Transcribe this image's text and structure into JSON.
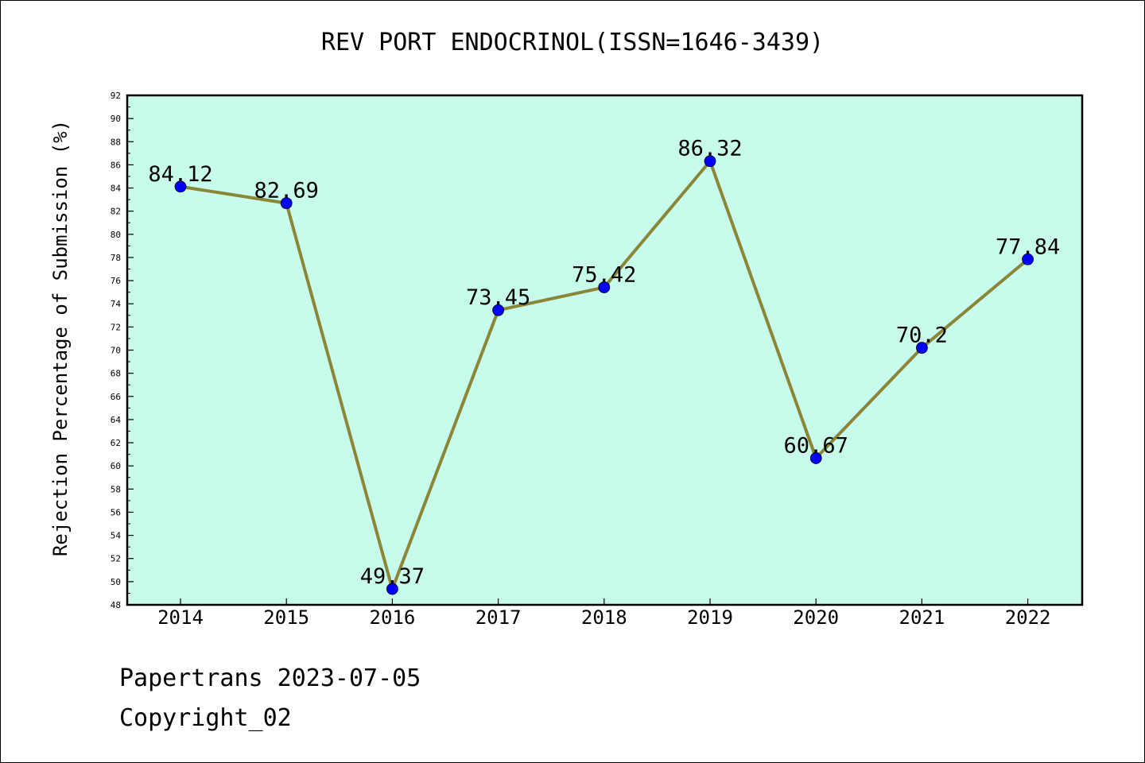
{
  "chart_data": {
    "type": "line",
    "title": "REV PORT ENDOCRINOL(ISSN=1646-3439)",
    "xlabel": "",
    "ylabel": "Rejection Percentage of Submission (%)",
    "categories": [
      "2014",
      "2015",
      "2016",
      "2017",
      "2018",
      "2019",
      "2020",
      "2021",
      "2022"
    ],
    "series": [
      {
        "values": [
          84.12,
          82.69,
          49.37,
          73.45,
          75.42,
          86.32,
          60.67,
          70.2,
          77.84
        ],
        "data_labels": [
          "84.12",
          "82.69",
          "49.37",
          "73.45",
          "75.42",
          "86.32",
          "60.67",
          "70.2",
          "77.84"
        ]
      }
    ],
    "ylim": [
      48,
      92
    ],
    "ytick_step": 2,
    "grid": false,
    "plot_background": "#c7fcec",
    "line_color": "#8b8636",
    "marker_color": "#0000ff"
  },
  "footer": {
    "line1": "Papertrans 2023-07-05",
    "line2": "Copyright_02"
  }
}
